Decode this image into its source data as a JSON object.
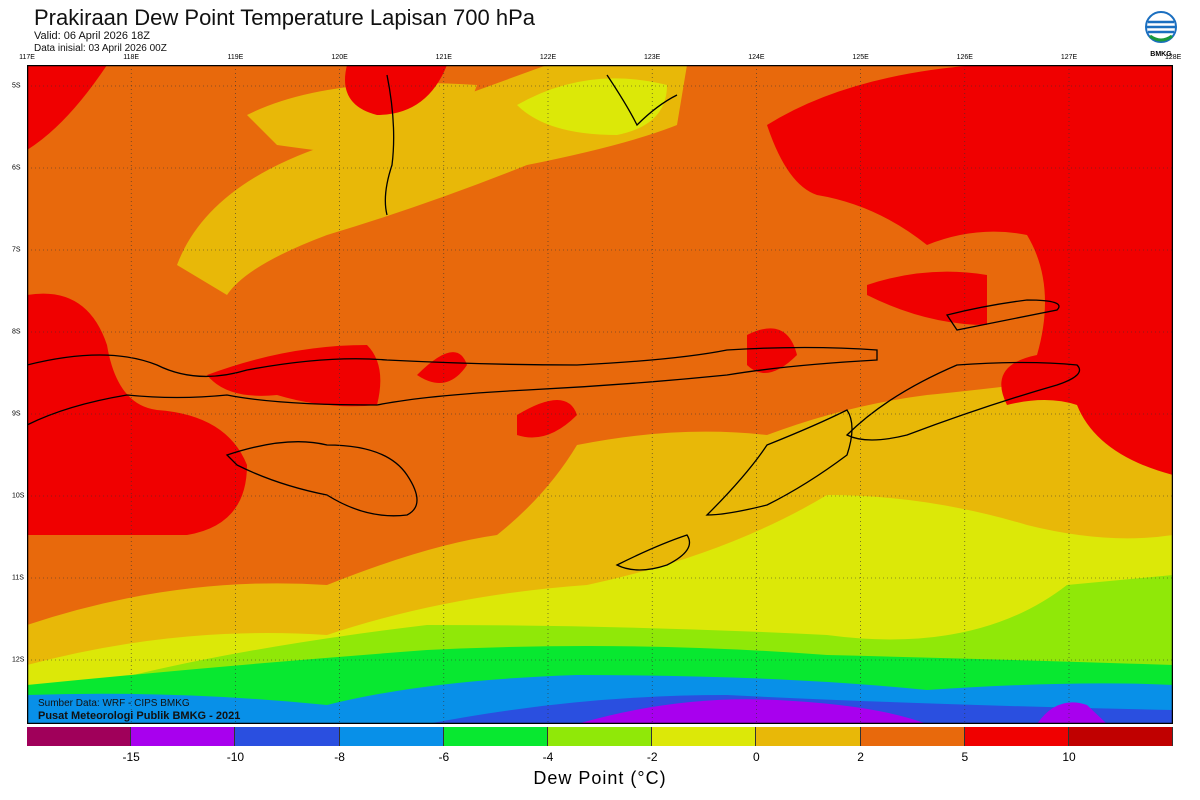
{
  "title": "Prakiraan Dew Point Temperature Lapisan 700 hPa",
  "valid": "Valid: 06 April 2026 18Z",
  "init": "Data inisial: 03 April 2026 00Z",
  "logo_text": "BMKG",
  "lon_labels": [
    "117E",
    "118E",
    "119E",
    "120E",
    "121E",
    "122E",
    "123E",
    "124E",
    "125E",
    "126E",
    "127E",
    "128E"
  ],
  "lat_labels": [
    "5S",
    "6S",
    "7S",
    "8S",
    "9S",
    "10S",
    "11S",
    "12S"
  ],
  "source": "Sumber Data: WRF - CIPS BMKG",
  "credit": "Pusat Meteorologi Publik BMKG - 2021",
  "colorbar": {
    "colors": [
      "#a0005a",
      "#a800ee",
      "#2a4fe0",
      "#0890e8",
      "#08e830",
      "#90e808",
      "#dce808",
      "#e8b808",
      "#e8690c",
      "#f00000",
      "#c00000"
    ],
    "labels": [
      "-15",
      "-10",
      "-8",
      "-6",
      "-4",
      "-2",
      "0",
      "2",
      "5",
      "10"
    ],
    "title": "Dew Point (°C)"
  }
}
